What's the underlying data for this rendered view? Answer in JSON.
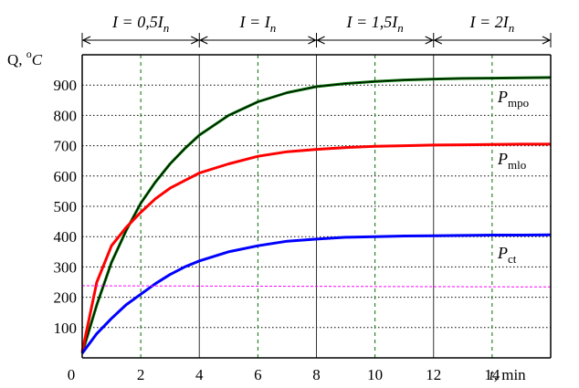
{
  "chart_data": {
    "type": "line",
    "ylabel": "Q, °C",
    "ylabel_parts": {
      "prefix": "Q, ",
      "sup": "o",
      "unit": "C"
    },
    "xlabel": "t, min",
    "xlabel_parts": {
      "var": "t",
      "rest": ", min"
    },
    "origin_label": "0",
    "xlim": [
      0,
      16
    ],
    "ylim": [
      0,
      1000
    ],
    "xticks": [
      2,
      4,
      6,
      8,
      10,
      12,
      14
    ],
    "yticks": [
      100,
      200,
      300,
      400,
      500,
      600,
      700,
      800,
      900
    ],
    "grid": true,
    "intervals": [
      {
        "label": "I = 0,5I",
        "sub": "n",
        "range": [
          0,
          4
        ]
      },
      {
        "label": "I = I",
        "sub": "n",
        "range": [
          4,
          8
        ]
      },
      {
        "label": "I = 1,5I",
        "sub": "n",
        "range": [
          8,
          12
        ]
      },
      {
        "label": "I = 2I",
        "sub": "n",
        "range": [
          12,
          16
        ]
      }
    ],
    "series": [
      {
        "name": "Pmpo",
        "label_main": "P",
        "label_sub": "mpo",
        "color": "#007000",
        "x": [
          0,
          0.5,
          1,
          1.5,
          2,
          2.5,
          3,
          3.5,
          4,
          5,
          6,
          7,
          8,
          9,
          10,
          11,
          12,
          13,
          14,
          15,
          16
        ],
        "y": [
          15,
          175,
          315,
          420,
          510,
          580,
          640,
          690,
          735,
          800,
          845,
          875,
          895,
          905,
          912,
          917,
          920,
          922,
          923,
          924,
          925
        ]
      },
      {
        "name": "Pmlo",
        "label_main": "P",
        "label_sub": "mlo",
        "color": "#ff0000",
        "x": [
          0,
          0.5,
          1,
          1.5,
          2,
          2.5,
          3,
          3.5,
          4,
          5,
          6,
          7,
          8,
          9,
          10,
          11,
          12,
          13,
          14,
          15,
          16
        ],
        "y": [
          20,
          250,
          370,
          430,
          480,
          525,
          560,
          585,
          610,
          640,
          665,
          680,
          688,
          694,
          698,
          700,
          702,
          703,
          704,
          705,
          705
        ]
      },
      {
        "name": "Pct",
        "label_main": "P",
        "label_sub": "ct",
        "color": "#0000ff",
        "x": [
          0,
          0.5,
          1,
          1.5,
          2,
          2.5,
          3,
          3.5,
          4,
          5,
          6,
          7,
          8,
          9,
          10,
          11,
          12,
          13,
          14,
          15,
          16
        ],
        "y": [
          15,
          80,
          130,
          175,
          210,
          245,
          275,
          300,
          320,
          350,
          370,
          385,
          392,
          398,
          400,
          402,
          403,
          404,
          405,
          405,
          406
        ]
      },
      {
        "name": "reference",
        "color": "#ff00ff",
        "dashed": true,
        "x": [
          0,
          16
        ],
        "y": [
          238,
          234
        ]
      }
    ]
  }
}
